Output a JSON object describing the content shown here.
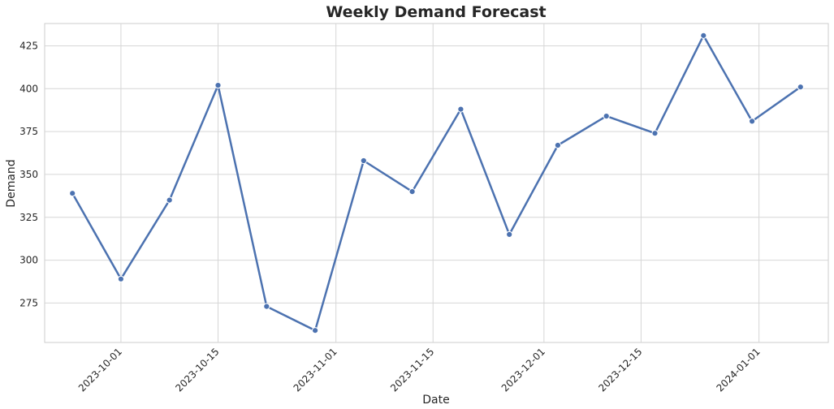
{
  "chart_data": {
    "type": "line",
    "title": "Weekly Demand Forecast",
    "xlabel": "Date",
    "ylabel": "Demand",
    "x": [
      "2023-09-24",
      "2023-10-01",
      "2023-10-08",
      "2023-10-15",
      "2023-10-22",
      "2023-10-29",
      "2023-11-05",
      "2023-11-12",
      "2023-11-19",
      "2023-11-26",
      "2023-12-03",
      "2023-12-10",
      "2023-12-17",
      "2023-12-24",
      "2023-12-31",
      "2024-01-07"
    ],
    "series": [
      {
        "values": [
          339,
          289,
          335,
          402,
          273,
          259,
          358,
          340,
          388,
          315,
          367,
          384,
          374,
          431,
          381,
          401
        ]
      }
    ],
    "xlim": [
      "2023-09-20",
      "2024-01-11"
    ],
    "ylim": [
      252,
      438
    ],
    "x_ticks": [
      "2023-10-01",
      "2023-10-15",
      "2023-11-01",
      "2023-11-15",
      "2023-12-01",
      "2023-12-15",
      "2024-01-01"
    ],
    "y_ticks": [
      275,
      300,
      325,
      350,
      375,
      400,
      425
    ],
    "grid": true,
    "colors": {
      "line": "#4c72b0",
      "grid": "#d6d6d6",
      "text": "#262626"
    },
    "markers": "circle"
  }
}
